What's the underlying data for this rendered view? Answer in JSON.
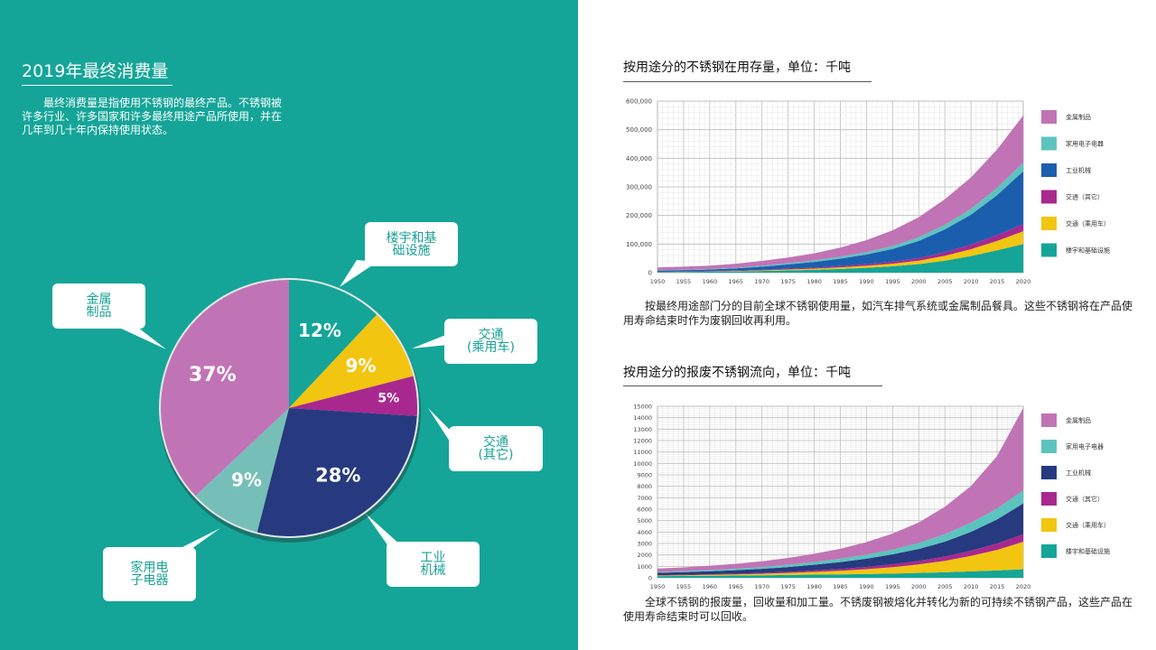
{
  "left": {
    "title": "2019年最终消费量",
    "text": "最终消费量是指使用不锈钢的最终产品。不锈钢被许多行业、许多国家和许多最终用途产品所使用，并在几年到几十年内保持使用状态。"
  },
  "callouts": {
    "buildings": "楼宇和基\n础设施",
    "transport_car": "交通\n(乘用车)",
    "transport_other": "交通\n(其它)",
    "machinery": "工业\n机械",
    "appliances": "家用电\n子电器",
    "metal": "金属\n制品"
  },
  "chart_data": [
    {
      "type": "pie",
      "slices": [
        {
          "label": "12%",
          "value": 12,
          "color": "#14a598"
        },
        {
          "label": "9%",
          "value": 9,
          "color": "#f2c511"
        },
        {
          "label": "5%",
          "value": 5,
          "color": "#a8288f"
        },
        {
          "label": "28%",
          "value": 28,
          "color": "#273a7f"
        },
        {
          "label": "9%",
          "value": 9,
          "color": "#76bfb9"
        },
        {
          "label": "37%",
          "value": 37,
          "color": "#c074b5"
        }
      ]
    },
    {
      "type": "area",
      "title": "按用途分的不锈钢在用存量，单位：千吨",
      "x": [
        1950,
        1955,
        1960,
        1965,
        1970,
        1975,
        1980,
        1985,
        1990,
        1995,
        2000,
        2005,
        2010,
        2015,
        2020
      ],
      "ylim": [
        0,
        600000
      ],
      "yticks": [
        "0",
        "100,000",
        "200,000",
        "300,000",
        "400,000",
        "500,000",
        "600,000"
      ],
      "ytick_values": [
        0,
        100000,
        200000,
        300000,
        400000,
        500000,
        600000
      ],
      "legend": [
        "金属制品",
        "家用电子电器",
        "工业机械",
        "交通（其它）",
        "交通（乘用车）",
        "楼宇和基础设施"
      ],
      "legend_colors": [
        "#c074b5",
        "#5cc4bf",
        "#1c5eae",
        "#a8288f",
        "#f2c511",
        "#14a598"
      ],
      "series": [
        {
          "name": "楼宇和基础设施",
          "color": "#14a598",
          "values": [
            2000,
            2500,
            3000,
            4000,
            6000,
            8000,
            10000,
            13000,
            17000,
            22000,
            30000,
            42000,
            58000,
            78000,
            100000
          ]
        },
        {
          "name": "交通（乘用车）",
          "color": "#f2c511",
          "values": [
            500,
            700,
            1000,
            1500,
            2000,
            3000,
            4000,
            5500,
            7000,
            9000,
            12000,
            17000,
            24000,
            33000,
            45000
          ]
        },
        {
          "name": "交通（其它）",
          "color": "#a8288f",
          "values": [
            500,
            700,
            1000,
            1500,
            2000,
            3000,
            3500,
            4500,
            5500,
            7000,
            9000,
            12000,
            16000,
            20000,
            25000
          ]
        },
        {
          "name": "工业机械",
          "color": "#1c5eae",
          "values": [
            4000,
            5000,
            6000,
            8000,
            11000,
            15000,
            20000,
            26000,
            34000,
            45000,
            60000,
            80000,
            105000,
            140000,
            185000
          ]
        },
        {
          "name": "家用电子电器",
          "color": "#5cc4bf",
          "values": [
            1000,
            1200,
            1500,
            2000,
            3000,
            4000,
            5000,
            6500,
            8000,
            10000,
            13000,
            16000,
            20000,
            25000,
            30000
          ]
        },
        {
          "name": "金属制品",
          "color": "#c074b5",
          "values": [
            10000,
            11000,
            12000,
            14000,
            17000,
            20000,
            25000,
            32000,
            42000,
            55000,
            70000,
            90000,
            110000,
            135000,
            165000
          ]
        }
      ]
    },
    {
      "type": "area",
      "title": "按用途分的报废不锈钢流向，单位：千吨",
      "x": [
        1950,
        1955,
        1960,
        1965,
        1970,
        1975,
        1980,
        1985,
        1990,
        1995,
        2000,
        2005,
        2010,
        2015,
        2020
      ],
      "ylim": [
        0,
        15000
      ],
      "yticks": [
        "0",
        "1000",
        "2000",
        "3000",
        "4000",
        "5000",
        "6000",
        "7000",
        "8000",
        "9000",
        "10000",
        "11000",
        "12000",
        "13000",
        "14000",
        "15000"
      ],
      "ytick_values": [
        0,
        1000,
        2000,
        3000,
        4000,
        5000,
        6000,
        7000,
        8000,
        9000,
        10000,
        11000,
        12000,
        13000,
        14000,
        15000
      ],
      "legend": [
        "金属制品",
        "家用电子电器",
        "工业机械",
        "交通（其它）",
        "交通（乘用车）",
        "楼宇和基础设施"
      ],
      "legend_colors": [
        "#c074b5",
        "#5cc4bf",
        "#273a7f",
        "#a8288f",
        "#f2c511",
        "#14a598"
      ],
      "series": [
        {
          "name": "楼宇和基础设施",
          "color": "#14a598",
          "values": [
            150,
            160,
            180,
            200,
            220,
            250,
            280,
            300,
            330,
            370,
            420,
            480,
            560,
            640,
            750
          ]
        },
        {
          "name": "交通（乘用车）",
          "color": "#f2c511",
          "values": [
            50,
            60,
            80,
            100,
            130,
            170,
            230,
            310,
            420,
            560,
            750,
            1000,
            1350,
            1800,
            2400
          ]
        },
        {
          "name": "交通（其它）",
          "color": "#a8288f",
          "values": [
            30,
            40,
            50,
            60,
            80,
            100,
            130,
            160,
            200,
            250,
            300,
            380,
            460,
            560,
            650
          ]
        },
        {
          "name": "工业机械",
          "color": "#273a7f",
          "values": [
            200,
            230,
            260,
            300,
            350,
            420,
            500,
            600,
            720,
            870,
            1050,
            1300,
            1650,
            2100,
            2700
          ]
        },
        {
          "name": "家用电子电器",
          "color": "#5cc4bf",
          "values": [
            80,
            90,
            110,
            130,
            160,
            200,
            240,
            290,
            350,
            420,
            520,
            650,
            800,
            950,
            1150
          ]
        },
        {
          "name": "金属制品",
          "color": "#c074b5",
          "values": [
            300,
            330,
            380,
            430,
            500,
            600,
            720,
            880,
            1100,
            1400,
            1800,
            2400,
            3200,
            4600,
            7200
          ]
        }
      ]
    }
  ],
  "right": {
    "text1": "按最终用途部门分的目前全球不锈钢使用量，如汽车排气系统或金属制品餐具。这些不锈钢将在产品使用寿命结束时作为废钢回收再利用。",
    "text2": "全球不锈钢的报废量，回收量和加工量。不锈废钢被熔化并转化为新的可持续不锈钢产品，这些产品在使用寿命结束时可以回收。"
  }
}
